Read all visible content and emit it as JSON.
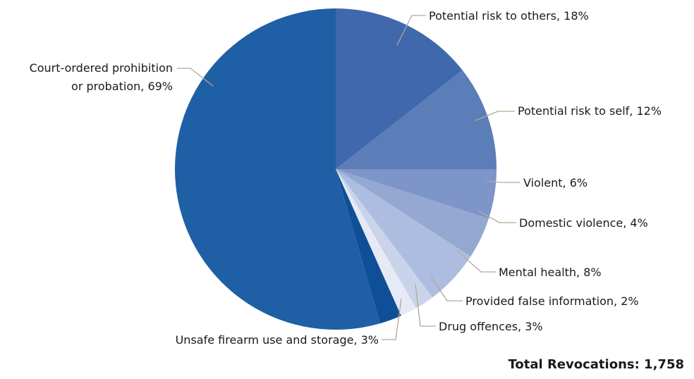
{
  "chart_data": {
    "type": "pie",
    "slices": [
      {
        "label": "Potential risk to others, 18%",
        "value": 18,
        "color": "#4068ad"
      },
      {
        "label": "Potential risk to self, 12%",
        "value": 12,
        "color": "#5b7db8"
      },
      {
        "label": "Violent, 6%",
        "value": 6,
        "color": "#7d95c8"
      },
      {
        "label": "Domestic violence, 4%",
        "value": 4,
        "color": "#94a8d2"
      },
      {
        "label": "Mental health, 8%",
        "value": 8,
        "color": "#adbde0"
      },
      {
        "label": "Provided false information, 2%",
        "value": 2,
        "color": "#c9d3ea"
      },
      {
        "label": "Drug offences, 3%",
        "value": 3,
        "color": "#e5eaf5"
      },
      {
        "label": "Unsafe firearm use and storage, 3%",
        "value": 3,
        "color": "#0f4f98"
      },
      {
        "label": "Court-ordered prohibition or probation, 69%",
        "value": 69,
        "color": "#1f5fa5"
      }
    ],
    "total_label": "Total Revocations: 1,758"
  }
}
